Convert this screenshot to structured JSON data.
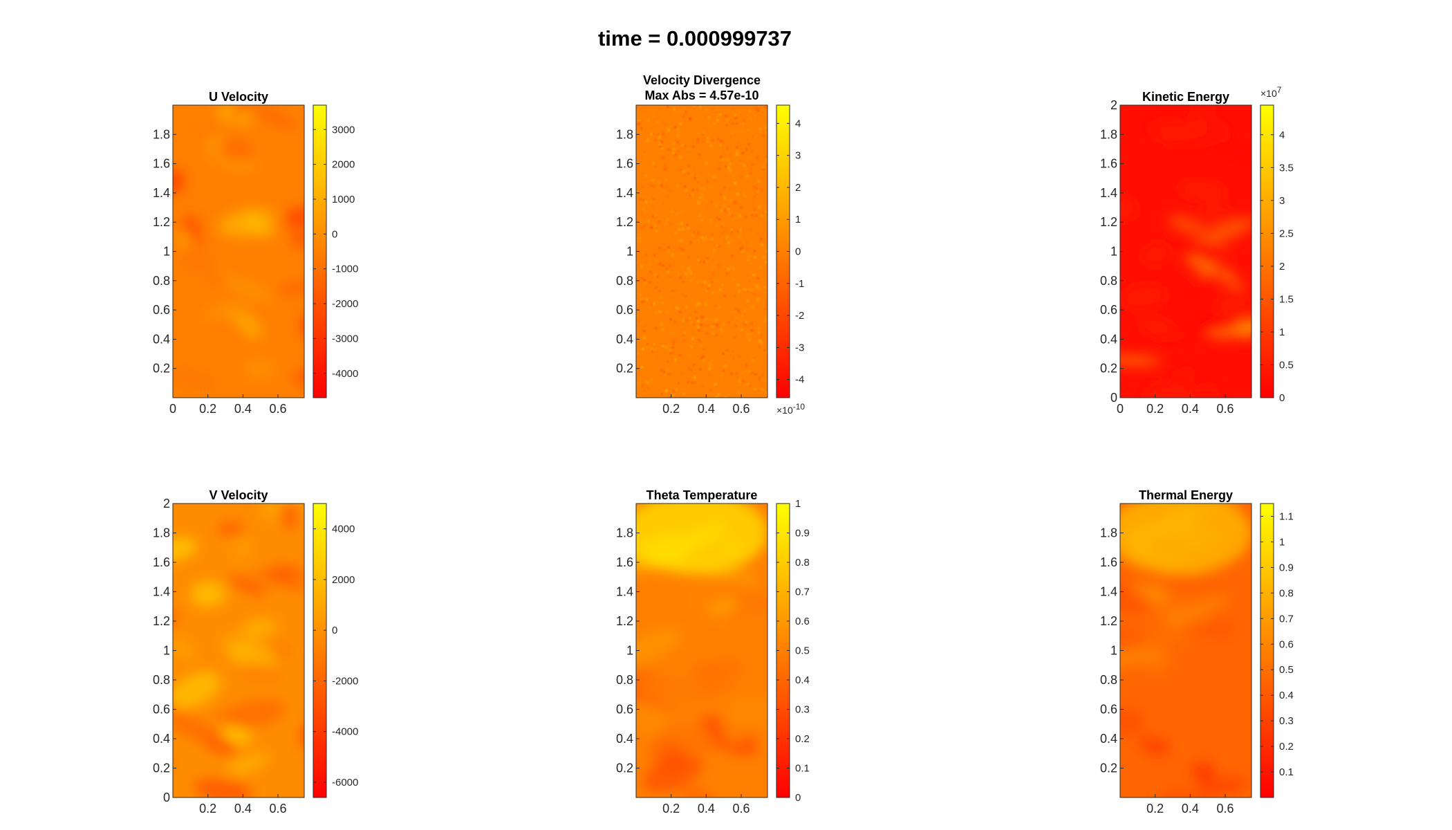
{
  "figure": {
    "title": "time = 0.000999737"
  },
  "colors": {
    "colormap_low": "#ff0000",
    "colormap_high": "#ffff00",
    "axis": "#262626"
  },
  "chart_data": [
    {
      "type": "heatmap",
      "title": "U Velocity",
      "xlim": [
        0,
        0.75
      ],
      "ylim": [
        0,
        2
      ],
      "xticks": [
        "0",
        "0.2",
        "0.4",
        "0.6"
      ],
      "xtick_values": [
        0,
        0.2,
        0.4,
        0.6
      ],
      "yticks": [
        "0.2",
        "0.4",
        "0.6",
        "0.8",
        "1",
        "1.2",
        "1.4",
        "1.6",
        "1.8"
      ],
      "ytick_values": [
        0.2,
        0.4,
        0.6,
        0.8,
        1,
        1.2,
        1.4,
        1.6,
        1.8
      ],
      "colorbar": {
        "lim": [
          -4700,
          3700
        ],
        "ticks": [
          "3000",
          "2000",
          "1000",
          "0",
          "-1000",
          "-2000",
          "-3000",
          "-4000"
        ],
        "tick_values": [
          3000,
          2000,
          1000,
          0,
          -1000,
          -2000,
          -3000,
          -4000
        ],
        "exponent": ""
      },
      "field_level": 0.5
    },
    {
      "type": "heatmap",
      "title": "Velocity Divergence",
      "subtitle": "Max Abs = 4.57e-10",
      "xlim": [
        0,
        0.75
      ],
      "ylim": [
        0,
        2
      ],
      "xticks": [
        "0.2",
        "0.4",
        "0.6"
      ],
      "xtick_values": [
        0.2,
        0.4,
        0.6
      ],
      "yticks": [
        "0.2",
        "0.4",
        "0.6",
        "0.8",
        "1",
        "1.2",
        "1.4",
        "1.6",
        "1.8"
      ],
      "ytick_values": [
        0.2,
        0.4,
        0.6,
        0.8,
        1,
        1.2,
        1.4,
        1.6,
        1.8
      ],
      "colorbar": {
        "lim": [
          -4.57,
          4.57
        ],
        "ticks": [
          "4",
          "3",
          "2",
          "1",
          "0",
          "-1",
          "-2",
          "-3",
          "-4"
        ],
        "tick_values": [
          4,
          3,
          2,
          1,
          0,
          -1,
          -2,
          -3,
          -4
        ],
        "exponent": "×10",
        "exponent_power": "-10",
        "exponent_pos": "bottom"
      },
      "field_level": 0.5
    },
    {
      "type": "heatmap",
      "title": "Kinetic Energy",
      "xlim": [
        0,
        0.75
      ],
      "ylim": [
        0,
        2
      ],
      "xticks": [
        "0",
        "0.2",
        "0.4",
        "0.6"
      ],
      "xtick_values": [
        0,
        0.2,
        0.4,
        0.6
      ],
      "yticks": [
        "0",
        "0.2",
        "0.4",
        "0.6",
        "0.8",
        "1",
        "1.2",
        "1.4",
        "1.6",
        "1.8",
        "2"
      ],
      "ytick_values": [
        0,
        0.2,
        0.4,
        0.6,
        0.8,
        1,
        1.2,
        1.4,
        1.6,
        1.8,
        2
      ],
      "colorbar": {
        "lim": [
          0,
          4.45
        ],
        "ticks": [
          "4",
          "3.5",
          "3",
          "2.5",
          "2",
          "1.5",
          "1",
          "0.5",
          "0"
        ],
        "tick_values": [
          4,
          3.5,
          3,
          2.5,
          2,
          1.5,
          1,
          0.5,
          0
        ],
        "exponent": "×10",
        "exponent_power": "7",
        "exponent_pos": "top"
      },
      "field_level": 0.06
    },
    {
      "type": "heatmap",
      "title": "V Velocity",
      "xlim": [
        0,
        0.75
      ],
      "ylim": [
        0,
        2
      ],
      "xticks": [
        "0.2",
        "0.4",
        "0.6"
      ],
      "xtick_values": [
        0.2,
        0.4,
        0.6
      ],
      "yticks": [
        "0",
        "0.2",
        "0.4",
        "0.6",
        "0.8",
        "1",
        "1.2",
        "1.4",
        "1.6",
        "1.8",
        "2"
      ],
      "ytick_values": [
        0,
        0.2,
        0.4,
        0.6,
        0.8,
        1,
        1.2,
        1.4,
        1.6,
        1.8,
        2
      ],
      "colorbar": {
        "lim": [
          -6600,
          5000
        ],
        "ticks": [
          "4000",
          "2000",
          "0",
          "-2000",
          "-4000",
          "-6000"
        ],
        "tick_values": [
          4000,
          2000,
          0,
          -2000,
          -4000,
          -6000
        ],
        "exponent": ""
      },
      "field_level": 0.55
    },
    {
      "type": "heatmap",
      "title": "Theta Temperature",
      "xlim": [
        0,
        0.75
      ],
      "ylim": [
        0,
        2
      ],
      "xticks": [
        "0.2",
        "0.4",
        "0.6"
      ],
      "xtick_values": [
        0.2,
        0.4,
        0.6
      ],
      "yticks": [
        "0.2",
        "0.4",
        "0.6",
        "0.8",
        "1",
        "1.2",
        "1.4",
        "1.6",
        "1.8"
      ],
      "ytick_values": [
        0.2,
        0.4,
        0.6,
        0.8,
        1,
        1.2,
        1.4,
        1.6,
        1.8
      ],
      "colorbar": {
        "lim": [
          0,
          1
        ],
        "ticks": [
          "1",
          "0.9",
          "0.8",
          "0.7",
          "0.6",
          "0.5",
          "0.4",
          "0.3",
          "0.2",
          "0.1",
          "0"
        ],
        "tick_values": [
          1,
          0.9,
          0.8,
          0.7,
          0.6,
          0.5,
          0.4,
          0.3,
          0.2,
          0.1,
          0
        ],
        "exponent": ""
      },
      "field_level": 0.5
    },
    {
      "type": "heatmap",
      "title": "Thermal Energy",
      "xlim": [
        0,
        0.75
      ],
      "ylim": [
        0,
        2
      ],
      "xticks": [
        "0.2",
        "0.4",
        "0.6"
      ],
      "xtick_values": [
        0.2,
        0.4,
        0.6
      ],
      "yticks": [
        "0.2",
        "0.4",
        "0.6",
        "0.8",
        "1",
        "1.2",
        "1.4",
        "1.6",
        "1.8"
      ],
      "ytick_values": [
        0.2,
        0.4,
        0.6,
        0.8,
        1,
        1.2,
        1.4,
        1.6,
        1.8
      ],
      "colorbar": {
        "lim": [
          0,
          1.15
        ],
        "ticks": [
          "1.1",
          "1",
          "0.9",
          "0.8",
          "0.7",
          "0.6",
          "0.5",
          "0.4",
          "0.3",
          "0.2",
          "0.1"
        ],
        "tick_values": [
          1.1,
          1,
          0.9,
          0.8,
          0.7,
          0.6,
          0.5,
          0.4,
          0.3,
          0.2,
          0.1
        ],
        "exponent": ""
      },
      "field_level": 0.4
    }
  ]
}
